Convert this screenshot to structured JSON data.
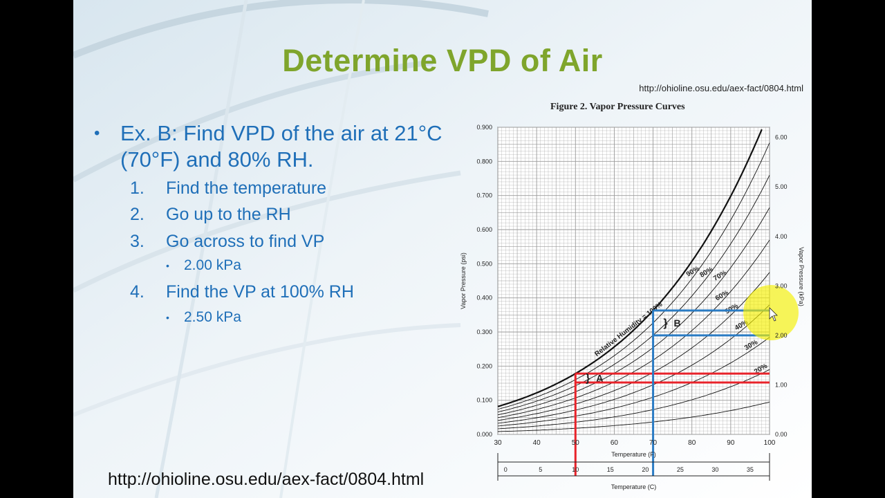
{
  "slide": {
    "title": "Determine VPD of Air",
    "source_top": "http://ohioline.osu.edu/aex-fact/0804.html",
    "source_bottom": "http://ohioline.osu.edu/aex-fact/0804.html",
    "bullet": "Ex. B: Find VPD of the air at 21°C (70°F) and 80% RH.",
    "steps": [
      {
        "num": "1.",
        "text": "Find the temperature"
      },
      {
        "num": "2.",
        "text": "Go up to the RH"
      },
      {
        "num": "3.",
        "text": "Go across to find VP"
      },
      {
        "num": "4.",
        "text": "Find the VP at 100% RH"
      }
    ],
    "sub_values": [
      "2.00 kPa",
      "2.50 kPa"
    ]
  },
  "chart_data": {
    "type": "line",
    "title": "Figure 2.  Vapor Pressure Curves",
    "xlabel": "Temperature (F)",
    "x2label": "Temperature (C)",
    "ylabel": "Vapor Pressure (psi)",
    "y2label": "Vapor Pressure (kPa)",
    "xlim": [
      30,
      100
    ],
    "ylim": [
      0,
      0.9
    ],
    "x_ticks": [
      "30",
      "40",
      "50",
      "60",
      "70",
      "80",
      "90",
      "100"
    ],
    "y_ticks": [
      "0.000",
      "0.100",
      "0.200",
      "0.300",
      "0.400",
      "0.500",
      "0.600",
      "0.700",
      "0.800",
      "0.900"
    ],
    "y2_ticks": [
      "0.00",
      "1.00",
      "2.00",
      "3.00",
      "4.00",
      "5.00",
      "6.00"
    ],
    "x2_ticks": [
      "0",
      "5",
      "10",
      "15",
      "20",
      "25",
      "30",
      "35"
    ],
    "series": [
      {
        "name": "Relative Humidity = 100%",
        "rh": 100
      },
      {
        "name": "90%",
        "rh": 90
      },
      {
        "name": "80%",
        "rh": 80
      },
      {
        "name": "70%",
        "rh": 70
      },
      {
        "name": "60%",
        "rh": 60
      },
      {
        "name": "50%",
        "rh": 50
      },
      {
        "name": "40%",
        "rh": 40
      },
      {
        "name": "30%",
        "rh": 30
      },
      {
        "name": "20%",
        "rh": 20
      },
      {
        "name": "",
        "rh": 10
      }
    ],
    "annotations": [
      {
        "label": "A",
        "temp_f": 50,
        "vp_high_psi": 0.178,
        "vp_low_psi": 0.152,
        "color": "#e8232a"
      },
      {
        "label": "B",
        "temp_f": 70,
        "vp_high_psi": 0.363,
        "vp_low_psi": 0.29,
        "color": "#2b7cc4"
      }
    ],
    "colors": {
      "grid": "#9a9a9a",
      "curve": "#111111",
      "example_a": "#e8232a",
      "example_b": "#2b7cc4",
      "highlight": "#f5f000"
    }
  }
}
